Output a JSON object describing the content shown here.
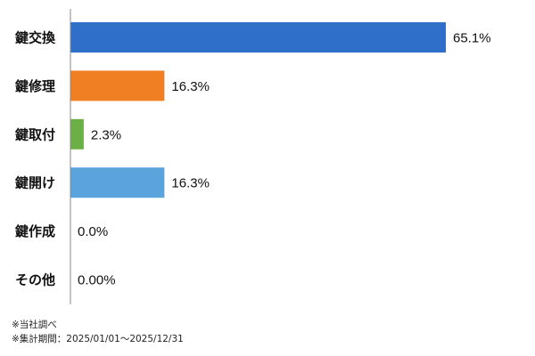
{
  "chart_data": {
    "type": "bar",
    "orientation": "horizontal",
    "categories": [
      "鍵交換",
      "鍵修理",
      "鍵取付",
      "鍵開け",
      "鍵作成",
      "その他"
    ],
    "values": [
      65.1,
      16.3,
      2.3,
      16.3,
      0.0,
      0.0
    ],
    "value_labels": [
      "65.1%",
      "16.3%",
      "2.3%",
      "16.3%",
      "0.0%",
      "0.00%"
    ],
    "colors": [
      "#2f6fca",
      "#f07f23",
      "#6bb046",
      "#5ba3dd",
      "#2f6fca",
      "#2f6fca"
    ],
    "xlim": [
      0,
      65.1
    ],
    "grid": false,
    "legend": "none"
  },
  "notes": {
    "source": "※当社調べ",
    "period": "※集計期間：2025/01/01～2025/12/31"
  }
}
